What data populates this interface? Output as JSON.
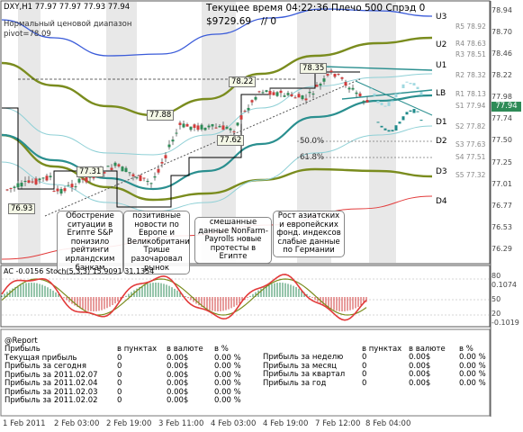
{
  "header": {
    "symbol_line": "DXY,H1  77.97 77.97 77.93 77.94",
    "range_label": "Нормальный ценовой диапазон",
    "pivot_label": "pivot=78.09",
    "time_line": "Текущее время 04:22:36 Плечо 500 Спрэд 0",
    "balance": "$9729.69",
    "balance_suffix": "// 0"
  },
  "price_axis": {
    "labels": [
      "78.94",
      "78.70",
      "78.46",
      "78.22",
      "77.98",
      "77.74",
      "77.50",
      "77.25",
      "77.01",
      "76.77",
      "76.53",
      "76.29"
    ],
    "current_price": "77.94",
    "current_color": "#2e8b57"
  },
  "levels": [
    "U3",
    "U2",
    "U1",
    "LB",
    "D1",
    "D2",
    "D3",
    "D4"
  ],
  "fib": [
    "50.0%",
    "61.8%"
  ],
  "rs_labels": [
    "R5 78.92",
    "R4 78.63",
    "R3 78.51",
    "R2 78.32",
    "R1 78.13",
    "S1 77.94",
    "S2 77.82",
    "S3 77.63",
    "S4 77.51",
    "S5 77.32"
  ],
  "price_tags": [
    "78.35",
    "78.22",
    "77.88",
    "77.62",
    "77.31",
    "76.93"
  ],
  "annotations": [
    {
      "text": "Обострение ситуации в Египте S&P понизило рейтинги ирландским банкам"
    },
    {
      "text": "позитивные новости по Европе и Великобритани Трише разочаровал рынок"
    },
    {
      "text": "смешанные данные NonFarm-Payrolls новые протесты в Египте"
    },
    {
      "text": "Рост азиатских и европейских фонд. индексов слабые данные по Германии"
    }
  ],
  "oscillator": {
    "label": "AC -0.0156  Stoch(5,3,3) 15.9091 31.1354",
    "right_labels": [
      "80",
      "0.1074",
      "50",
      "20",
      "-0.1019"
    ]
  },
  "time_axis": [
    "1 Feb 2011",
    "2 Feb 03:00",
    "2 Feb 19:00",
    "3 Feb 11:00",
    "4 Feb 03:00",
    "4 Feb 19:00",
    "7 Feb 12:00",
    "8 Feb 04:00"
  ],
  "report": {
    "title": "@Report",
    "headers": [
      "в пунктах",
      "в валюте",
      "в %"
    ],
    "left_rows": [
      {
        "label": "Прибыль",
        "points": "",
        "money": "",
        "pct": ""
      },
      {
        "label": "Текущая прибыль",
        "points": "0",
        "money": "0.00$",
        "pct": "0.00 %"
      },
      {
        "label": "Прибыль за сегодня",
        "points": "0",
        "money": "0.00$",
        "pct": "0.00 %"
      },
      {
        "label": "Прибыль за 2011.02.07",
        "points": "0",
        "money": "0.00$",
        "pct": "0.00 %"
      },
      {
        "label": "Прибыль за 2011.02.04",
        "points": "0",
        "money": "0.00$",
        "pct": "0.00 %"
      },
      {
        "label": "Прибыль за 2011.02.03",
        "points": "0",
        "money": "0.00$",
        "pct": "0.00 %"
      },
      {
        "label": "Прибыль за 2011.02.02",
        "points": "0",
        "money": "0.00$",
        "pct": "0.00 %"
      }
    ],
    "right_rows": [
      {
        "label": "Прибыль за неделю",
        "points": "0",
        "money": "0.00$",
        "pct": "0.00 %"
      },
      {
        "label": "Прибыль за месяц",
        "points": "0",
        "money": "0.00$",
        "pct": "0.00 %"
      },
      {
        "label": "Прибыль за квартал",
        "points": "0",
        "money": "0.00$",
        "pct": "0.00 %"
      },
      {
        "label": "Прибыль за год",
        "points": "0",
        "money": "0.00$",
        "pct": "0.00 %"
      }
    ]
  }
}
